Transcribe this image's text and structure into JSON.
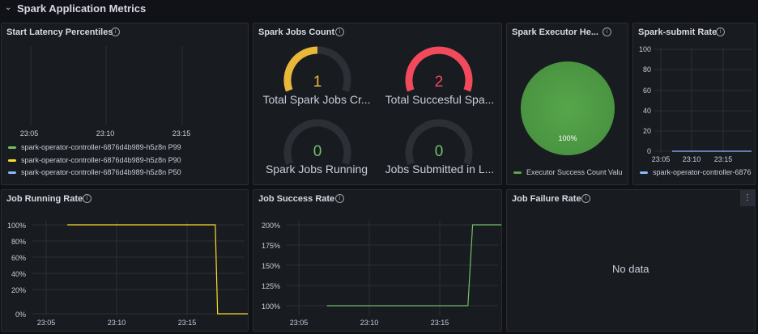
{
  "row": {
    "title": "Spark Application Metrics"
  },
  "panels": {
    "latency": {
      "title": "Start Latency Percentiles",
      "x_ticks": [
        "23:05",
        "23:10",
        "23:15"
      ],
      "legend": [
        {
          "label": "spark-operator-controller-6876d4b989-h5z8n P99",
          "color": "#73bf69"
        },
        {
          "label": "spark-operator-controller-6876d4b989-h5z8n P90",
          "color": "#fade2a"
        },
        {
          "label": "spark-operator-controller-6876d4b989-h5z8n P50",
          "color": "#8ab8ff"
        }
      ]
    },
    "jobs_count": {
      "title": "Spark Jobs Count",
      "gauges": [
        {
          "value": "1",
          "label": "Total Spark Jobs Cr...",
          "color": "#eab839",
          "fill": 0.5
        },
        {
          "value": "2",
          "label": "Total Succesful Spa...",
          "color": "#f2495c",
          "fill": 1.0
        },
        {
          "value": "0",
          "label": "Spark Jobs Running",
          "color": "#73bf69",
          "fill": 0.0
        },
        {
          "value": "0",
          "label": "Jobs Submitted in L...",
          "color": "#73bf69",
          "fill": 0.0
        }
      ]
    },
    "executor": {
      "title": "Spark Executor He...",
      "pie_label": "100%",
      "pie_color": "#56a64b",
      "legend": {
        "label": "Executor Success Count  Valu",
        "color": "#56a64b"
      }
    },
    "submit_rate": {
      "title": "Spark-submit Rate",
      "y_ticks": [
        "100",
        "80",
        "60",
        "40",
        "20",
        "0"
      ],
      "x_ticks": [
        "23:05",
        "23:10",
        "23:15"
      ],
      "legend": {
        "label": "spark-operator-controller-6876",
        "color": "#8ab8ff"
      }
    },
    "running_rate": {
      "title": "Job Running Rate",
      "y_ticks": [
        "100%",
        "80%",
        "60%",
        "40%",
        "20%",
        "0%"
      ],
      "x_ticks": [
        "23:05",
        "23:10",
        "23:15"
      ],
      "line_color": "#fade2a"
    },
    "success_rate": {
      "title": "Job Success Rate",
      "y_ticks": [
        "200%",
        "175%",
        "150%",
        "125%",
        "100%"
      ],
      "x_ticks": [
        "23:05",
        "23:10",
        "23:15"
      ],
      "line_color": "#73bf69"
    },
    "failure_rate": {
      "title": "Job Failure Rate",
      "no_data": "No data",
      "menu_icon": "kebab-menu-icon"
    }
  },
  "chart_data": [
    {
      "type": "line",
      "title": "Job Running Rate",
      "x": [
        "23:06:30",
        "23:17:00",
        "23:17:10",
        "23:19:30"
      ],
      "series": [
        {
          "values": [
            100,
            100,
            0,
            0
          ]
        }
      ],
      "ylim": [
        0,
        100
      ]
    },
    {
      "type": "line",
      "title": "Job Success Rate",
      "x": [
        "23:07:00",
        "23:17:00",
        "23:17:20",
        "23:19:30"
      ],
      "series": [
        {
          "values": [
            100,
            100,
            200,
            200
          ]
        }
      ],
      "ylim": [
        100,
        200
      ]
    },
    {
      "type": "line",
      "title": "Spark-submit Rate",
      "x": [
        "23:06:30",
        "23:19:30"
      ],
      "series": [
        {
          "name": "spark-operator-controller-6876",
          "values": [
            0,
            0
          ]
        }
      ],
      "ylim": [
        0,
        100
      ]
    },
    {
      "type": "pie",
      "title": "Spark Executor He...",
      "categories": [
        "Executor Success Count"
      ],
      "values": [
        100
      ]
    }
  ]
}
